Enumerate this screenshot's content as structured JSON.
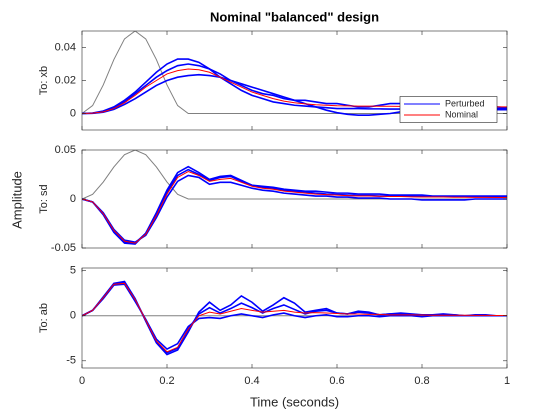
{
  "ylabel": "Amplitude",
  "chart_data": [
    {
      "type": "line",
      "title": "Nominal \"balanced\" design",
      "ylabel": "To: xb",
      "legend": "right",
      "x": [
        0,
        0.025,
        0.05,
        0.075,
        0.1,
        0.125,
        0.15,
        0.175,
        0.2,
        0.225,
        0.25,
        0.275,
        0.3,
        0.325,
        0.35,
        0.375,
        0.4,
        0.425,
        0.45,
        0.475,
        0.5,
        0.525,
        0.55,
        0.575,
        0.6,
        0.625,
        0.65,
        0.675,
        0.7,
        0.725,
        0.75,
        0.775,
        0.8,
        0.825,
        0.85,
        0.875,
        0.9,
        0.925,
        0.95,
        0.975,
        1
      ],
      "xlim": [
        0,
        1
      ],
      "xticks": [
        0,
        0.2,
        0.4,
        0.6,
        0.8,
        1
      ],
      "ylim": [
        -0.01,
        0.05
      ],
      "yticks": [
        0,
        0.02,
        0.04
      ],
      "series": [
        {
          "color": "#808080",
          "values": [
            0,
            0.0048,
            0.0173,
            0.0327,
            0.0452,
            0.05,
            0.0452,
            0.0327,
            0.0173,
            0.0048,
            0,
            0,
            0,
            0,
            0,
            0,
            0,
            0,
            0,
            0,
            0,
            0,
            0,
            0,
            0,
            0,
            0,
            0,
            0,
            0,
            0,
            0,
            0,
            0,
            0,
            0,
            0,
            0,
            0,
            0,
            0
          ]
        },
        {
          "name": "Perturbed",
          "color": "#0000ff",
          "values": [
            0,
            0.0003,
            0.0015,
            0.004,
            0.008,
            0.013,
            0.019,
            0.025,
            0.03,
            0.033,
            0.033,
            0.031,
            0.027,
            0.022,
            0.018,
            0.014,
            0.011,
            0.009,
            0.007,
            0.006,
            0.005,
            0.0045,
            0.004,
            0.0035,
            0.003,
            0.003,
            0.003,
            0.0028,
            0.0028,
            0.0027,
            0.0027,
            0.0026,
            0.0026,
            0.0025,
            0.0025,
            0.0025,
            0.0024,
            0.0024,
            0.0024,
            0.0023,
            0.0023
          ]
        },
        {
          "name": "Perturbed",
          "color": "#0000ff",
          "values": [
            0,
            0.0001,
            0.0008,
            0.0025,
            0.0055,
            0.009,
            0.013,
            0.017,
            0.02,
            0.022,
            0.023,
            0.0235,
            0.023,
            0.022,
            0.02,
            0.018,
            0.016,
            0.014,
            0.012,
            0.01,
            0.008,
            0.006,
            0.004,
            0.002,
            0.0005,
            -0.0005,
            -0.001,
            -0.001,
            -0.0005,
            0,
            0.001,
            0.002,
            0.003,
            0.004,
            0.0045,
            0.005,
            0.005,
            0.0048,
            0.0045,
            0.004,
            0.0035
          ]
        },
        {
          "name": "Perturbed",
          "color": "#0000ff",
          "values": [
            0,
            0.0002,
            0.001,
            0.0032,
            0.007,
            0.012,
            0.017,
            0.022,
            0.026,
            0.029,
            0.03,
            0.029,
            0.027,
            0.024,
            0.02,
            0.017,
            0.014,
            0.012,
            0.011,
            0.009,
            0.008,
            0.008,
            0.007,
            0.006,
            0.006,
            0.005,
            0.004,
            0.004,
            0.005,
            0.006,
            0.006,
            0.005,
            0.004,
            0.003,
            0.003,
            0.004,
            0.005,
            0.005,
            0.004,
            0.003,
            0.003
          ]
        },
        {
          "name": "Nominal",
          "color": "#ff0000",
          "values": [
            0,
            0.0002,
            0.001,
            0.003,
            0.0065,
            0.011,
            0.016,
            0.02,
            0.024,
            0.026,
            0.027,
            0.0265,
            0.025,
            0.022,
            0.019,
            0.016,
            0.013,
            0.011,
            0.009,
            0.0075,
            0.0065,
            0.0058,
            0.0053,
            0.005,
            0.0047,
            0.0046,
            0.0045,
            0.0045,
            0.0044,
            0.0044,
            0.0043,
            0.0043,
            0.0043,
            0.0042,
            0.0042,
            0.0042,
            0.0041,
            0.0041,
            0.0041,
            0.004,
            0.004
          ]
        }
      ]
    },
    {
      "type": "line",
      "ylabel": "To: sd",
      "x": [
        0,
        0.025,
        0.05,
        0.075,
        0.1,
        0.125,
        0.15,
        0.175,
        0.2,
        0.225,
        0.25,
        0.275,
        0.3,
        0.325,
        0.35,
        0.375,
        0.4,
        0.425,
        0.45,
        0.475,
        0.5,
        0.525,
        0.55,
        0.575,
        0.6,
        0.625,
        0.65,
        0.675,
        0.7,
        0.725,
        0.75,
        0.775,
        0.8,
        0.825,
        0.85,
        0.875,
        0.9,
        0.925,
        0.95,
        0.975,
        1
      ],
      "xlim": [
        0,
        1
      ],
      "xticks": [
        0,
        0.2,
        0.4,
        0.6,
        0.8,
        1
      ],
      "ylim": [
        -0.05,
        0.05
      ],
      "yticks": [
        -0.05,
        0,
        0.05
      ],
      "series": [
        {
          "color": "#808080",
          "values": [
            0,
            0.0048,
            0.0173,
            0.0327,
            0.0452,
            0.05,
            0.0452,
            0.0327,
            0.0173,
            0.0048,
            0,
            0,
            0,
            0,
            0,
            0,
            0,
            0,
            0,
            0,
            0,
            0,
            0,
            0,
            0,
            0,
            0,
            0,
            0,
            0,
            0,
            0,
            0,
            0,
            0,
            0,
            0,
            0,
            0,
            0,
            0
          ]
        },
        {
          "name": "Perturbed",
          "color": "#0000ff",
          "values": [
            0,
            -0.003,
            -0.016,
            -0.034,
            -0.045,
            -0.046,
            -0.035,
            -0.014,
            0.009,
            0.027,
            0.033,
            0.027,
            0.02,
            0.023,
            0.024,
            0.019,
            0.014,
            0.012,
            0.011,
            0.009,
            0.008,
            0.007,
            0.006,
            0.005,
            0.0045,
            0.004,
            0.0035,
            0.0035,
            0.003,
            0.003,
            0.003,
            0.0028,
            0.0026,
            0.0025,
            0.0025,
            0.0024,
            0.0023,
            0.0022,
            0.0021,
            0.002,
            0.002
          ]
        },
        {
          "name": "Perturbed",
          "color": "#0000ff",
          "values": [
            0,
            -0.003,
            -0.014,
            -0.031,
            -0.042,
            -0.044,
            -0.037,
            -0.019,
            0.002,
            0.018,
            0.024,
            0.022,
            0.015,
            0.017,
            0.017,
            0.014,
            0.011,
            0.009,
            0.008,
            0.006,
            0.005,
            0.004,
            0.003,
            0.003,
            0.002,
            0.002,
            0.001,
            0.001,
            0.001,
            0,
            0,
            0,
            -0.001,
            -0.001,
            -0.001,
            -0.001,
            -0.001,
            0,
            0,
            0,
            0
          ]
        },
        {
          "name": "Perturbed",
          "color": "#0000ff",
          "values": [
            0,
            -0.003,
            -0.015,
            -0.033,
            -0.044,
            -0.045,
            -0.035,
            -0.016,
            0.007,
            0.024,
            0.03,
            0.025,
            0.019,
            0.022,
            0.023,
            0.018,
            0.014,
            0.013,
            0.012,
            0.01,
            0.009,
            0.008,
            0.008,
            0.007,
            0.006,
            0.006,
            0.005,
            0.005,
            0.005,
            0.004,
            0.004,
            0.004,
            0.004,
            0.003,
            0.003,
            0.003,
            0.003,
            0.003,
            0.003,
            0.003,
            0.003
          ]
        },
        {
          "name": "Nominal",
          "color": "#ff0000",
          "values": [
            0,
            -0.003,
            -0.015,
            -0.032,
            -0.043,
            -0.045,
            -0.036,
            -0.017,
            0.005,
            0.022,
            0.028,
            0.024,
            0.018,
            0.02,
            0.021,
            0.017,
            0.013,
            0.011,
            0.01,
            0.008,
            0.007,
            0.006,
            0.005,
            0.0045,
            0.004,
            0.0035,
            0.003,
            0.003,
            0.0028,
            0.0025,
            0.0025,
            0.0022,
            0.002,
            0.002,
            0.002,
            0.0018,
            0.0018,
            0.0017,
            0.0016,
            0.0015,
            0.0015
          ]
        }
      ]
    },
    {
      "type": "line",
      "ylabel": "To: ab",
      "xlabel": "Time (seconds)",
      "x": [
        0,
        0.025,
        0.05,
        0.075,
        0.1,
        0.125,
        0.15,
        0.175,
        0.2,
        0.225,
        0.25,
        0.275,
        0.3,
        0.325,
        0.35,
        0.375,
        0.4,
        0.425,
        0.45,
        0.475,
        0.5,
        0.525,
        0.55,
        0.575,
        0.6,
        0.625,
        0.65,
        0.675,
        0.7,
        0.725,
        0.75,
        0.775,
        0.8,
        0.825,
        0.85,
        0.875,
        0.9,
        0.925,
        0.95,
        0.975,
        1
      ],
      "xlim": [
        0,
        1
      ],
      "xticks": [
        0,
        0.2,
        0.4,
        0.6,
        0.8,
        1
      ],
      "xticklabels": true,
      "ylim": [
        -5.8,
        5.3
      ],
      "yticks": [
        -5,
        0,
        5
      ],
      "series": [
        {
          "color": "#808080",
          "values": [
            0,
            0,
            0,
            0,
            0,
            0,
            0,
            0,
            0,
            0,
            0,
            0,
            0,
            0,
            0,
            0,
            0,
            0,
            0,
            0,
            0,
            0,
            0,
            0,
            0,
            0,
            0,
            0,
            0,
            0,
            0,
            0,
            0,
            0,
            0,
            0,
            0,
            0,
            0,
            0,
            0
          ]
        },
        {
          "name": "Perturbed",
          "color": "#0000ff",
          "values": [
            0,
            0.6,
            2.1,
            3.6,
            3.8,
            1.9,
            -0.6,
            -3,
            -4.3,
            -3.8,
            -1.8,
            0.4,
            1.5,
            0.6,
            1.2,
            2.2,
            1.5,
            0.5,
            1.2,
            2,
            1.4,
            0.4,
            0.6,
            0.8,
            0.3,
            0.2,
            0.5,
            0.4,
            0.1,
            0.2,
            0.3,
            0.2,
            0.1,
            0.1,
            0.2,
            0.1,
            0,
            0.1,
            0.1,
            0,
            0
          ]
        },
        {
          "name": "Perturbed",
          "color": "#0000ff",
          "values": [
            0,
            0.6,
            1.9,
            3.4,
            3.5,
            1.6,
            -0.4,
            -2.6,
            -3.7,
            -3.1,
            -1.2,
            -0.3,
            -0.2,
            -0.3,
            0,
            0.2,
            0,
            -0.2,
            0.1,
            0.3,
            0,
            -0.2,
            0,
            0.1,
            -0.1,
            -0.1,
            0,
            0,
            -0.1,
            0,
            0,
            0,
            -0.1,
            0,
            0,
            0,
            0,
            0,
            0,
            0,
            0
          ]
        },
        {
          "name": "Perturbed",
          "color": "#0000ff",
          "values": [
            0,
            0.6,
            2,
            3.5,
            3.7,
            1.8,
            -0.5,
            -2.9,
            -4.1,
            -3.6,
            -1.5,
            0.2,
            0.9,
            0.3,
            0.8,
            1.4,
            0.9,
            0.3,
            0.8,
            1.2,
            0.7,
            0.2,
            0.5,
            0.6,
            0.3,
            0.2,
            0.4,
            0.3,
            0.1,
            0.2,
            0.2,
            0.1,
            0.1,
            0.1,
            0.1,
            0.1,
            0,
            0,
            0,
            0,
            0
          ]
        },
        {
          "name": "Nominal",
          "color": "#ff0000",
          "values": [
            0,
            0.6,
            2,
            3.5,
            3.6,
            1.8,
            -0.5,
            -2.8,
            -4,
            -3.5,
            -1.5,
            0,
            0.4,
            0.2,
            0.5,
            0.8,
            0.6,
            0.4,
            0.5,
            0.6,
            0.4,
            0.3,
            0.35,
            0.3,
            0.25,
            0.2,
            0.2,
            0.15,
            0.15,
            0.1,
            0.1,
            0.1,
            0.08,
            0.06,
            0.06,
            0.05,
            0.05,
            0.04,
            0.04,
            0.03,
            0.03
          ]
        }
      ]
    }
  ]
}
